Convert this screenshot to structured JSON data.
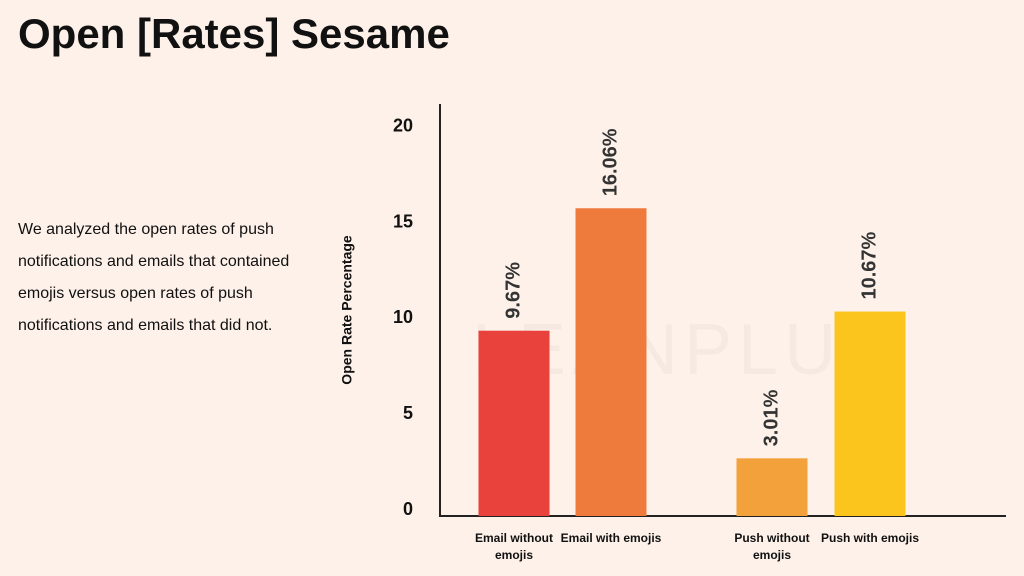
{
  "title": "Open [Rates] Sesame",
  "description": "We analyzed the open rates of push notifications and emails that contained emojis versus open rates of push notifications and emails that did not.",
  "watermark": "LEANPLUM",
  "chart_data": {
    "type": "bar",
    "y_label": "Open Rate Percentage",
    "categories": [
      "Email without emojis",
      "Email with emojis",
      "Push without emojis",
      "Push with emojis"
    ],
    "values": [
      9.67,
      16.06,
      3.01,
      10.67
    ],
    "value_labels": [
      "9.67%",
      "16.06%",
      "3.01%",
      "10.67%"
    ],
    "colors": [
      "#e9413b",
      "#ee7a3b",
      "#f3a13a",
      "#fbc51d"
    ],
    "ylim": [
      0,
      21.5
    ],
    "yticks": [
      0,
      5,
      10,
      15,
      20
    ],
    "grid": false
  }
}
